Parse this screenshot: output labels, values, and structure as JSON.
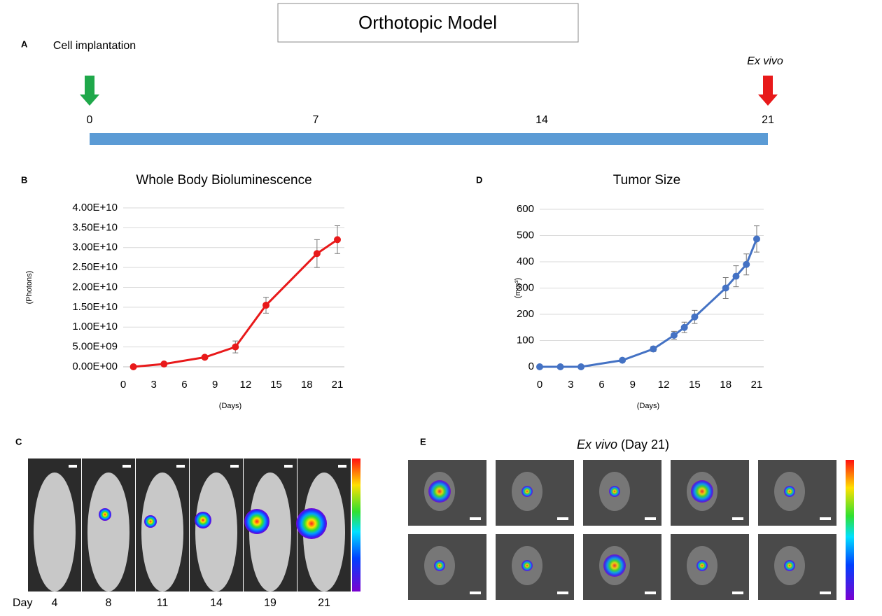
{
  "title": "Orthotopic Model",
  "panel_a": {
    "letter": "A",
    "start_label": "Cell implantation",
    "end_label": "Ex vivo",
    "ticks": [
      0,
      7,
      14,
      21
    ]
  },
  "chart_data": [
    {
      "type": "line",
      "letter": "B",
      "title": "Whole Body Bioluminescence",
      "x_label": "(Days)",
      "y_label": "(Photons)",
      "x": [
        1,
        4,
        8,
        11,
        14,
        19,
        21
      ],
      "series": [
        {
          "color": "#e8191a",
          "values": [
            0,
            700000000,
            2400000000,
            5000000000,
            15500000000,
            28500000000,
            32000000000
          ],
          "errors": [
            0,
            0,
            0,
            1500000000,
            2000000000,
            3500000000,
            3500000000
          ]
        }
      ],
      "xlim": [
        0,
        21
      ],
      "xticks": [
        0,
        3,
        6,
        9,
        12,
        15,
        18,
        21
      ],
      "ylim": [
        0,
        40000000000
      ],
      "yticks": [
        {
          "value": 0,
          "label": "0.00E+00"
        },
        {
          "value": 5000000000,
          "label": "5.00E+09"
        },
        {
          "value": 10000000000,
          "label": "1.00E+10"
        },
        {
          "value": 15000000000,
          "label": "1.50E+10"
        },
        {
          "value": 20000000000,
          "label": "2.00E+10"
        },
        {
          "value": 25000000000,
          "label": "2.50E+10"
        },
        {
          "value": 30000000000,
          "label": "3.00E+10"
        },
        {
          "value": 35000000000,
          "label": "3.50E+10"
        },
        {
          "value": 40000000000,
          "label": "4.00E+10"
        }
      ],
      "grid": true
    },
    {
      "type": "line",
      "letter": "D",
      "title": "Tumor Size",
      "x_label": "(Days)",
      "y_label": "(mm³)",
      "x": [
        0,
        2,
        4,
        8,
        11,
        13,
        14,
        15,
        18,
        19,
        20,
        21
      ],
      "series": [
        {
          "color": "#4472c4",
          "values": [
            0,
            0,
            0,
            25,
            68,
            120,
            150,
            190,
            300,
            345,
            390,
            487
          ],
          "errors": [
            0,
            0,
            0,
            5,
            10,
            15,
            20,
            25,
            40,
            40,
            40,
            50
          ]
        }
      ],
      "xlim": [
        0,
        21
      ],
      "xticks": [
        0,
        3,
        6,
        9,
        12,
        15,
        18,
        21
      ],
      "ylim": [
        0,
        600
      ],
      "yticks": [
        0,
        100,
        200,
        300,
        400,
        500,
        600
      ],
      "grid": true
    }
  ],
  "panel_c": {
    "letter": "C",
    "day_label": "Day",
    "days": [
      4,
      8,
      11,
      14,
      19,
      21
    ]
  },
  "panel_e": {
    "letter": "E",
    "title_italic": "Ex vivo",
    "title_rest": "(Day 21)"
  }
}
